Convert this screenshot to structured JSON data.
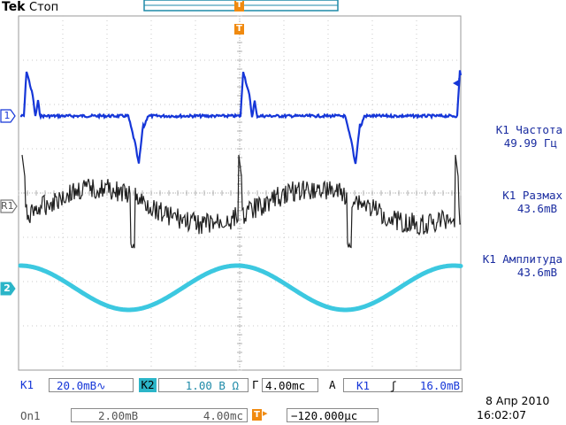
{
  "header": {
    "brand": "Tek",
    "status": "Стоп"
  },
  "channels": {
    "ch1_marker": "1",
    "ref_marker": "R1",
    "ch2_marker": "2",
    "trigger_marker": "T"
  },
  "colors": {
    "ch1": "#1536d8",
    "ref": "#202020",
    "ch2": "#3cc8e0",
    "trigger": "#f08a10",
    "grid": "#c8c8c8",
    "meas_text": "#1a2ca0"
  },
  "measurements": [
    {
      "label": "K1 Частота",
      "value": "49.99 Гц"
    },
    {
      "label": "K1 Размах",
      "value": "43.6mB"
    },
    {
      "label": "K1 Амплитуда",
      "value": "43.6mB"
    }
  ],
  "bottom_bar": {
    "ch1_label": "K1",
    "ch1_scale": "20.0mB",
    "ch1_coupling": "∿",
    "ch2_label": "K2",
    "ch2_scale": "1.00 B",
    "ch2_impedance": "Ω",
    "timebase_prefix": "Г",
    "timebase": "4.00mc",
    "trigger_mode": "A",
    "trigger_source": "K1",
    "trigger_slope": "ʃ",
    "trigger_level": "16.0mB"
  },
  "status_bar": {
    "ref_label": "On1",
    "ref_scale": "2.00mB",
    "ref_time": "4.00mc",
    "trigger_icon": "T",
    "trigger_arrow": "▸",
    "position": "−120.000µc",
    "date": "8 Апр  2010",
    "time": "16:02:07"
  }
}
